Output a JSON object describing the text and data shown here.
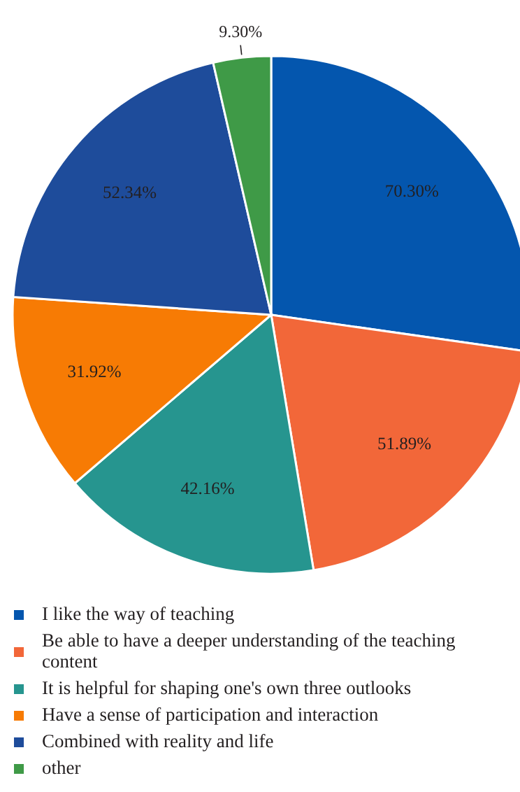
{
  "chart_data": {
    "type": "pie",
    "categories": [
      "I like the way of teaching",
      "Be able to have a deeper understanding of the teaching content",
      "It is helpful for shaping one's own three outlooks",
      "Have a sense of participation and interaction",
      "Combined with reality and life",
      "other"
    ],
    "values": [
      70.3,
      51.89,
      42.16,
      31.92,
      52.34,
      9.3
    ],
    "value_labels": [
      "70.30%",
      "51.89%",
      "42.16%",
      "31.92%",
      "52.34%",
      "9.30%"
    ],
    "colors": [
      "#0456ae",
      "#f26739",
      "#26958f",
      "#f77b04",
      "#1e4c9b",
      "#3f9a47"
    ],
    "legend": "bottom"
  }
}
